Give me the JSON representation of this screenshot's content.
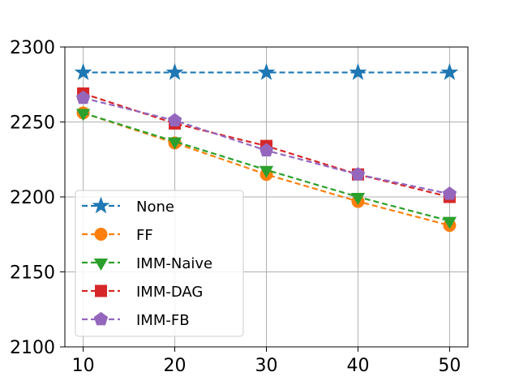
{
  "chart_data": {
    "type": "line",
    "title": "",
    "xlabel": "",
    "ylabel": "",
    "x": [
      10,
      20,
      30,
      40,
      50
    ],
    "xticks": [
      "10",
      "20",
      "30",
      "40",
      "50"
    ],
    "yticks": [
      "2100",
      "2150",
      "2200",
      "2250",
      "2300"
    ],
    "xlim": [
      8,
      52
    ],
    "ylim": [
      2100,
      2300
    ],
    "grid": true,
    "legend_position": "lower-left",
    "series": [
      {
        "name": "None",
        "values": [
          2283,
          2283,
          2283,
          2283,
          2283
        ],
        "color": "#1f77b4",
        "marker": "star"
      },
      {
        "name": "FF",
        "values": [
          2256,
          2236,
          2215,
          2197,
          2181
        ],
        "color": "#ff7f0e",
        "marker": "circle"
      },
      {
        "name": "IMM-Naive",
        "values": [
          2256,
          2237,
          2218,
          2200,
          2184
        ],
        "color": "#2ca02c",
        "marker": "triangle-down"
      },
      {
        "name": "IMM-DAG",
        "values": [
          2269,
          2249,
          2234,
          2215,
          2200
        ],
        "color": "#d62728",
        "marker": "square"
      },
      {
        "name": "IMM-FB",
        "values": [
          2266,
          2251,
          2231,
          2215,
          2202
        ],
        "color": "#9467bd",
        "marker": "pentagon"
      }
    ]
  }
}
